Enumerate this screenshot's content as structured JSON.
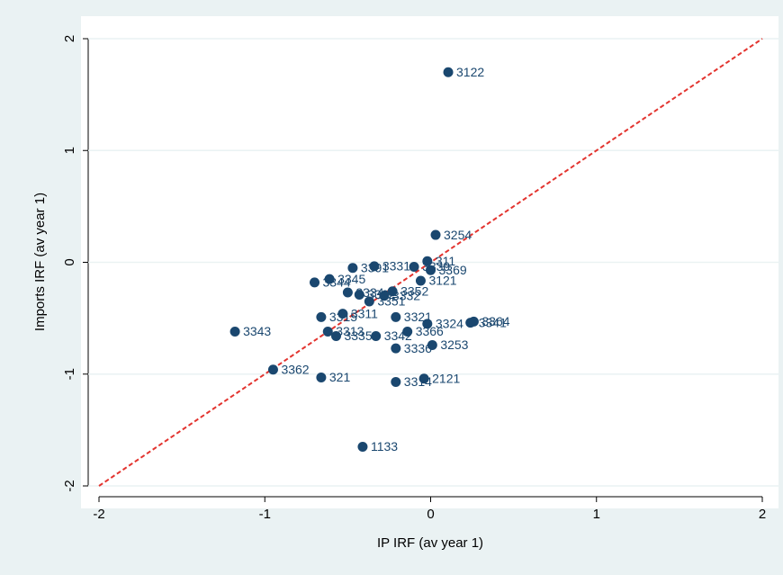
{
  "chart_data": {
    "type": "scatter",
    "xlabel": "IP IRF (av year 1)",
    "ylabel": "Imports IRF (av year 1)",
    "xlim": [
      -2,
      2
    ],
    "ylim": [
      -2,
      2
    ],
    "xticks": [
      -2,
      -1,
      0,
      1,
      2
    ],
    "yticks": [
      -2,
      -1,
      0,
      1,
      2
    ],
    "grid": true,
    "color": "#1a476f",
    "refline": {
      "x": [
        -2,
        2
      ],
      "y": [
        -2,
        2
      ],
      "color": "#e3342f"
    },
    "x": [
      0.106,
      0.03,
      -0.02,
      0,
      -0.06,
      0.26,
      0.24,
      -0.02,
      -0.14,
      0.01,
      -0.21,
      -1.18,
      -0.95,
      -0.66,
      -0.21,
      -0.04,
      -0.41,
      -0.37,
      -0.34,
      -0.21,
      -0.62,
      -0.57,
      -0.33,
      -0.66,
      -0.53,
      -0.7,
      -0.61,
      -0.47,
      -0.23,
      -0.28,
      -0.5,
      -0.43,
      -0.1
    ],
    "values": [
      1.7,
      0.245,
      0.01,
      -0.07,
      -0.165,
      -0.53,
      -0.54,
      -0.55,
      -0.62,
      -0.74,
      -0.77,
      -0.62,
      -0.96,
      -1.03,
      -1.07,
      -1.04,
      -1.65,
      -0.35,
      -0.035,
      -0.49,
      -0.62,
      -0.66,
      -0.66,
      -0.49,
      -0.46,
      -0.18,
      -0.15,
      -0.05,
      -0.26,
      -0.3,
      -0.27,
      -0.29,
      -0.04
    ],
    "labels": [
      "3122",
      "3254",
      "311",
      "3369",
      "3121",
      "3364",
      "3341",
      "3324",
      "3366",
      "3253",
      "3336",
      "3343",
      "3362",
      "321",
      "3314",
      "2121",
      "1133",
      "3351",
      "3331",
      "3321",
      "3313",
      "3335",
      "3342",
      "3315",
      "3311",
      "3344",
      "3345",
      "3391",
      "3352",
      "3332",
      "3334",
      "3322",
      "3339"
    ]
  }
}
